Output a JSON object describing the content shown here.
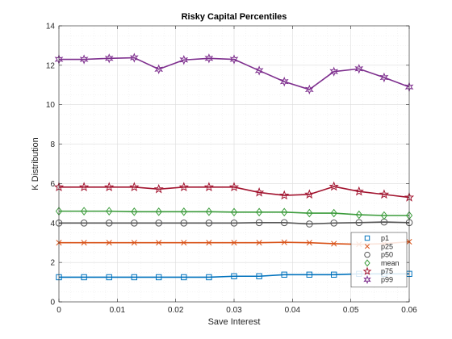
{
  "chart_data": {
    "type": "line",
    "title": "Risky Capital Percentiles",
    "xlabel": "Save Interest",
    "ylabel": "K Distribution",
    "xlim": [
      0,
      0.06
    ],
    "ylim": [
      0,
      14
    ],
    "xticks": [
      0,
      0.01,
      0.02,
      0.03,
      0.04,
      0.05,
      0.06
    ],
    "xtick_labels": [
      "0",
      "0.01",
      "0.02",
      "0.03",
      "0.04",
      "0.05",
      "0.06"
    ],
    "yticks": [
      0,
      2,
      4,
      6,
      8,
      10,
      12,
      14
    ],
    "ytick_labels": [
      "0",
      "2",
      "4",
      "6",
      "8",
      "10",
      "12",
      "14"
    ],
    "grid": true,
    "legend_position": "bottom-right",
    "x": [
      0,
      0.0043,
      0.0086,
      0.0129,
      0.0171,
      0.0214,
      0.0257,
      0.03,
      0.0343,
      0.0386,
      0.0429,
      0.0471,
      0.0514,
      0.0557,
      0.06
    ],
    "series": [
      {
        "name": "p1",
        "color": "#0072BD",
        "marker": "square",
        "values": [
          1.25,
          1.25,
          1.25,
          1.25,
          1.25,
          1.25,
          1.25,
          1.3,
          1.3,
          1.38,
          1.38,
          1.38,
          1.42,
          1.42,
          1.42
        ]
      },
      {
        "name": "p25",
        "color": "#D95319",
        "marker": "x",
        "values": [
          3.0,
          3.0,
          3.0,
          3.0,
          3.0,
          3.0,
          3.0,
          3.0,
          3.0,
          3.02,
          3.0,
          2.95,
          2.92,
          2.95,
          3.05
        ]
      },
      {
        "name": "p50",
        "color": "#555555",
        "marker": "circle",
        "values": [
          4.0,
          4.0,
          4.0,
          4.0,
          4.0,
          4.0,
          4.0,
          4.0,
          4.02,
          4.02,
          3.95,
          4.0,
          4.02,
          4.05,
          4.02
        ]
      },
      {
        "name": "mean",
        "color": "#3A9B3A",
        "marker": "diamond",
        "values": [
          4.6,
          4.6,
          4.6,
          4.57,
          4.57,
          4.57,
          4.57,
          4.55,
          4.55,
          4.55,
          4.5,
          4.5,
          4.42,
          4.38,
          4.38
        ]
      },
      {
        "name": "p75",
        "color": "#A2142F",
        "marker": "pentagram",
        "values": [
          5.82,
          5.82,
          5.82,
          5.82,
          5.72,
          5.82,
          5.82,
          5.82,
          5.55,
          5.4,
          5.45,
          5.85,
          5.6,
          5.45,
          5.3
        ]
      },
      {
        "name": "p99",
        "color": "#7E2F8E",
        "marker": "hexagram",
        "values": [
          12.3,
          12.3,
          12.35,
          12.38,
          11.8,
          12.27,
          12.35,
          12.3,
          11.73,
          11.17,
          10.77,
          11.68,
          11.82,
          11.38,
          10.9
        ]
      }
    ]
  }
}
